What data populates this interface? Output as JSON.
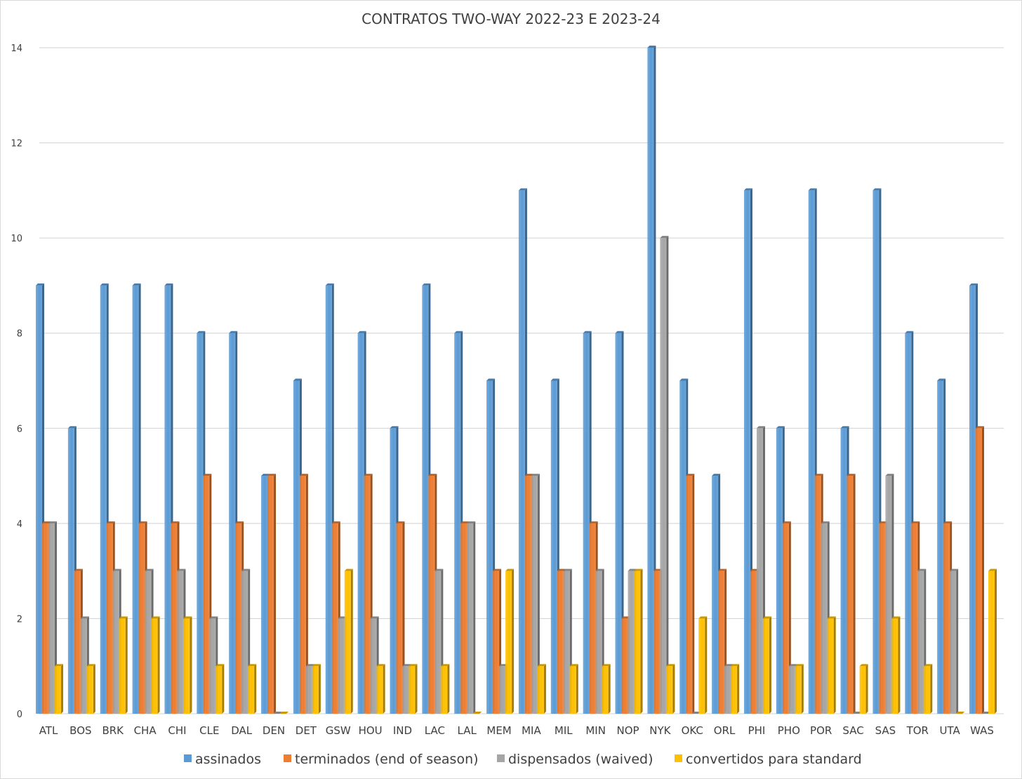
{
  "chart_data": {
    "type": "bar",
    "title": "CONTRATOS TWO-WAY 2022-23 E 2023-24",
    "xlabel": "",
    "ylabel": "",
    "ylim": [
      0,
      14
    ],
    "yticks": [
      0,
      2,
      4,
      6,
      8,
      10,
      12,
      14
    ],
    "grid": true,
    "legend_position": "bottom",
    "categories": [
      "ATL",
      "BOS",
      "BRK",
      "CHA",
      "CHI",
      "CLE",
      "DAL",
      "DEN",
      "DET",
      "GSW",
      "HOU",
      "IND",
      "LAC",
      "LAL",
      "MEM",
      "MIA",
      "MIL",
      "MIN",
      "NOP",
      "NYK",
      "OKC",
      "ORL",
      "PHI",
      "PHO",
      "POR",
      "SAC",
      "SAS",
      "TOR",
      "UTA",
      "WAS"
    ],
    "series": [
      {
        "name": "assinados",
        "color": "#5b9bd5",
        "values": [
          9,
          6,
          9,
          9,
          9,
          8,
          8,
          5,
          7,
          9,
          8,
          6,
          9,
          8,
          7,
          11,
          7,
          8,
          8,
          14,
          7,
          5,
          11,
          6,
          11,
          6,
          11,
          8,
          7,
          9
        ]
      },
      {
        "name": "terminados (end of season)",
        "color": "#ed7d31",
        "values": [
          4,
          3,
          4,
          4,
          4,
          5,
          4,
          5,
          5,
          4,
          5,
          4,
          5,
          4,
          3,
          5,
          3,
          4,
          2,
          3,
          5,
          3,
          3,
          4,
          5,
          5,
          4,
          4,
          4,
          6
        ]
      },
      {
        "name": "dispensados (waived)",
        "color": "#a5a5a5",
        "values": [
          4,
          2,
          3,
          3,
          3,
          2,
          3,
          0,
          1,
          2,
          2,
          1,
          3,
          4,
          1,
          5,
          3,
          3,
          3,
          10,
          0,
          1,
          6,
          1,
          4,
          0,
          5,
          3,
          3,
          0
        ]
      },
      {
        "name": "convertidos para standard",
        "color": "#ffc000",
        "values": [
          1,
          1,
          2,
          2,
          2,
          1,
          1,
          0,
          1,
          3,
          1,
          1,
          1,
          0,
          3,
          1,
          1,
          1,
          3,
          1,
          2,
          1,
          2,
          1,
          2,
          1,
          2,
          1,
          0,
          3
        ]
      }
    ]
  }
}
